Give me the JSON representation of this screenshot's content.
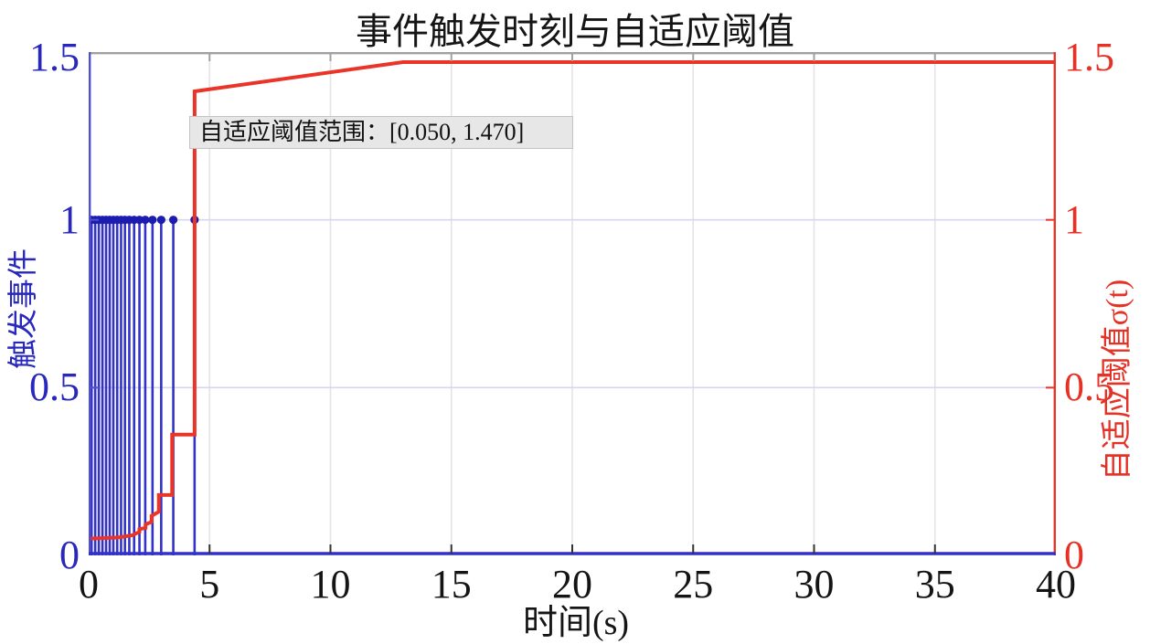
{
  "chart_data": {
    "type": "line",
    "title": "事件触发时刻与自适应阈值",
    "xlabel": "时间(s)",
    "ylabel_left": "触发事件",
    "ylabel_right": "自适应阈值σ(t)",
    "annotation": "自适应阈值范围：[0.050, 1.470]",
    "xlim": [
      0,
      40
    ],
    "ylim": [
      0,
      1.5
    ],
    "xticks": [
      0,
      5,
      10,
      15,
      20,
      25,
      30,
      35,
      40
    ],
    "yticks_left": [
      "0",
      "0.5",
      "1",
      "1.5"
    ],
    "yticks_right": [
      "0",
      "0.5",
      "1",
      "1.5"
    ],
    "ytick_values": [
      0,
      0.5,
      1,
      1.5
    ],
    "grid": true,
    "legend_position": "none",
    "colors": {
      "events": "#3232c8",
      "events_marker": "#1c1cb0",
      "left_axis": "#5050d0",
      "threshold": "#ea3428",
      "grid_vertical": "#e4e4e4",
      "grid_horizontal": "#d6d6f0",
      "frame_top": "#a0a0a0",
      "xtick_mark": "#333333",
      "annotation_bg": "#e7e7e7"
    },
    "series": [
      {
        "name": "触发事件",
        "type": "stem",
        "marker": "circle",
        "level": 1,
        "x": [
          0,
          0.12,
          0.27,
          0.42,
          0.57,
          0.72,
          0.87,
          1.02,
          1.18,
          1.34,
          1.5,
          1.68,
          1.88,
          2.1,
          2.34,
          2.64,
          3.0,
          3.5,
          4.38
        ]
      },
      {
        "name": "自适应阈值σ(t)",
        "type": "step",
        "sigma_range": [
          0.05,
          1.47
        ],
        "points": [
          [
            0,
            0.05
          ],
          [
            1.2,
            0.053
          ],
          [
            1.8,
            0.06
          ],
          [
            2.1,
            0.07
          ],
          [
            2.1,
            0.078
          ],
          [
            2.35,
            0.082
          ],
          [
            2.35,
            0.092
          ],
          [
            2.6,
            0.1
          ],
          [
            2.6,
            0.118
          ],
          [
            2.9,
            0.13
          ],
          [
            2.9,
            0.18
          ],
          [
            3.45,
            0.18
          ],
          [
            3.45,
            0.36
          ],
          [
            4.38,
            0.36
          ],
          [
            4.38,
            1.383
          ],
          [
            13.0,
            1.47
          ],
          [
            40,
            1.47
          ]
        ]
      }
    ]
  }
}
